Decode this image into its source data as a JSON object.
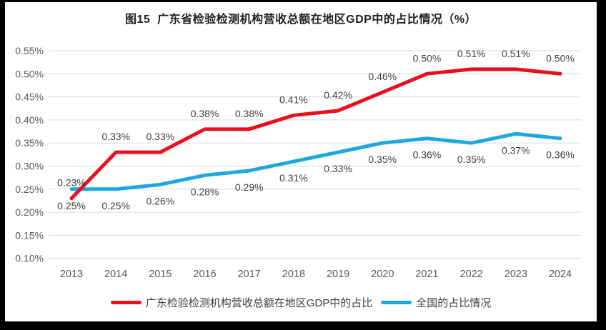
{
  "frame": {
    "background": "#000000",
    "canvas_background": "#ffffff"
  },
  "chart_data": {
    "type": "line",
    "title": "图15  广东省检验检测机构营收总额在地区GDP中的占比情况（%）",
    "categories": [
      "2013",
      "2014",
      "2015",
      "2016",
      "2017",
      "2018",
      "2019",
      "2020",
      "2021",
      "2022",
      "2023",
      "2024"
    ],
    "series": [
      {
        "key": "guangdong",
        "name": "广东检验检测机构营收总额在地区GDP中的占比",
        "color": "#e8101c",
        "values": [
          0.23,
          0.33,
          0.33,
          0.38,
          0.38,
          0.41,
          0.42,
          0.46,
          0.5,
          0.51,
          0.51,
          0.5
        ],
        "labels": [
          "0.23%",
          "0.33%",
          "0.33%",
          "0.38%",
          "0.38%",
          "0.41%",
          "0.42%",
          "0.46%",
          "0.50%",
          "0.51%",
          "0.51%",
          "0.50%"
        ],
        "label_position": "above"
      },
      {
        "key": "national",
        "name": "全国的占比情况",
        "color": "#1fa8dc",
        "values": [
          0.25,
          0.25,
          0.26,
          0.28,
          0.29,
          0.31,
          0.33,
          0.35,
          0.36,
          0.35,
          0.37,
          0.36
        ],
        "labels": [
          "0.25%",
          "0.25%",
          "0.26%",
          "0.28%",
          "0.29%",
          "0.31%",
          "0.33%",
          "0.35%",
          "0.36%",
          "0.35%",
          "0.37%",
          "0.36%"
        ],
        "label_position": "below"
      }
    ],
    "y_axis": {
      "tick_labels": [
        "0.55%",
        "0.50%",
        "0.45%",
        "0.40%",
        "0.35%",
        "0.30%",
        "0.25%",
        "0.20%",
        "0.15%",
        "0.10%"
      ],
      "max": 0.55,
      "min": 0.1,
      "step": 0.05
    },
    "grid": true,
    "legend_position": "bottom",
    "colors": {
      "gridline": "#d9d9d9",
      "axis_text": "#595959",
      "data_label_text": "#404040",
      "title_text": "#1f1f1f"
    }
  }
}
